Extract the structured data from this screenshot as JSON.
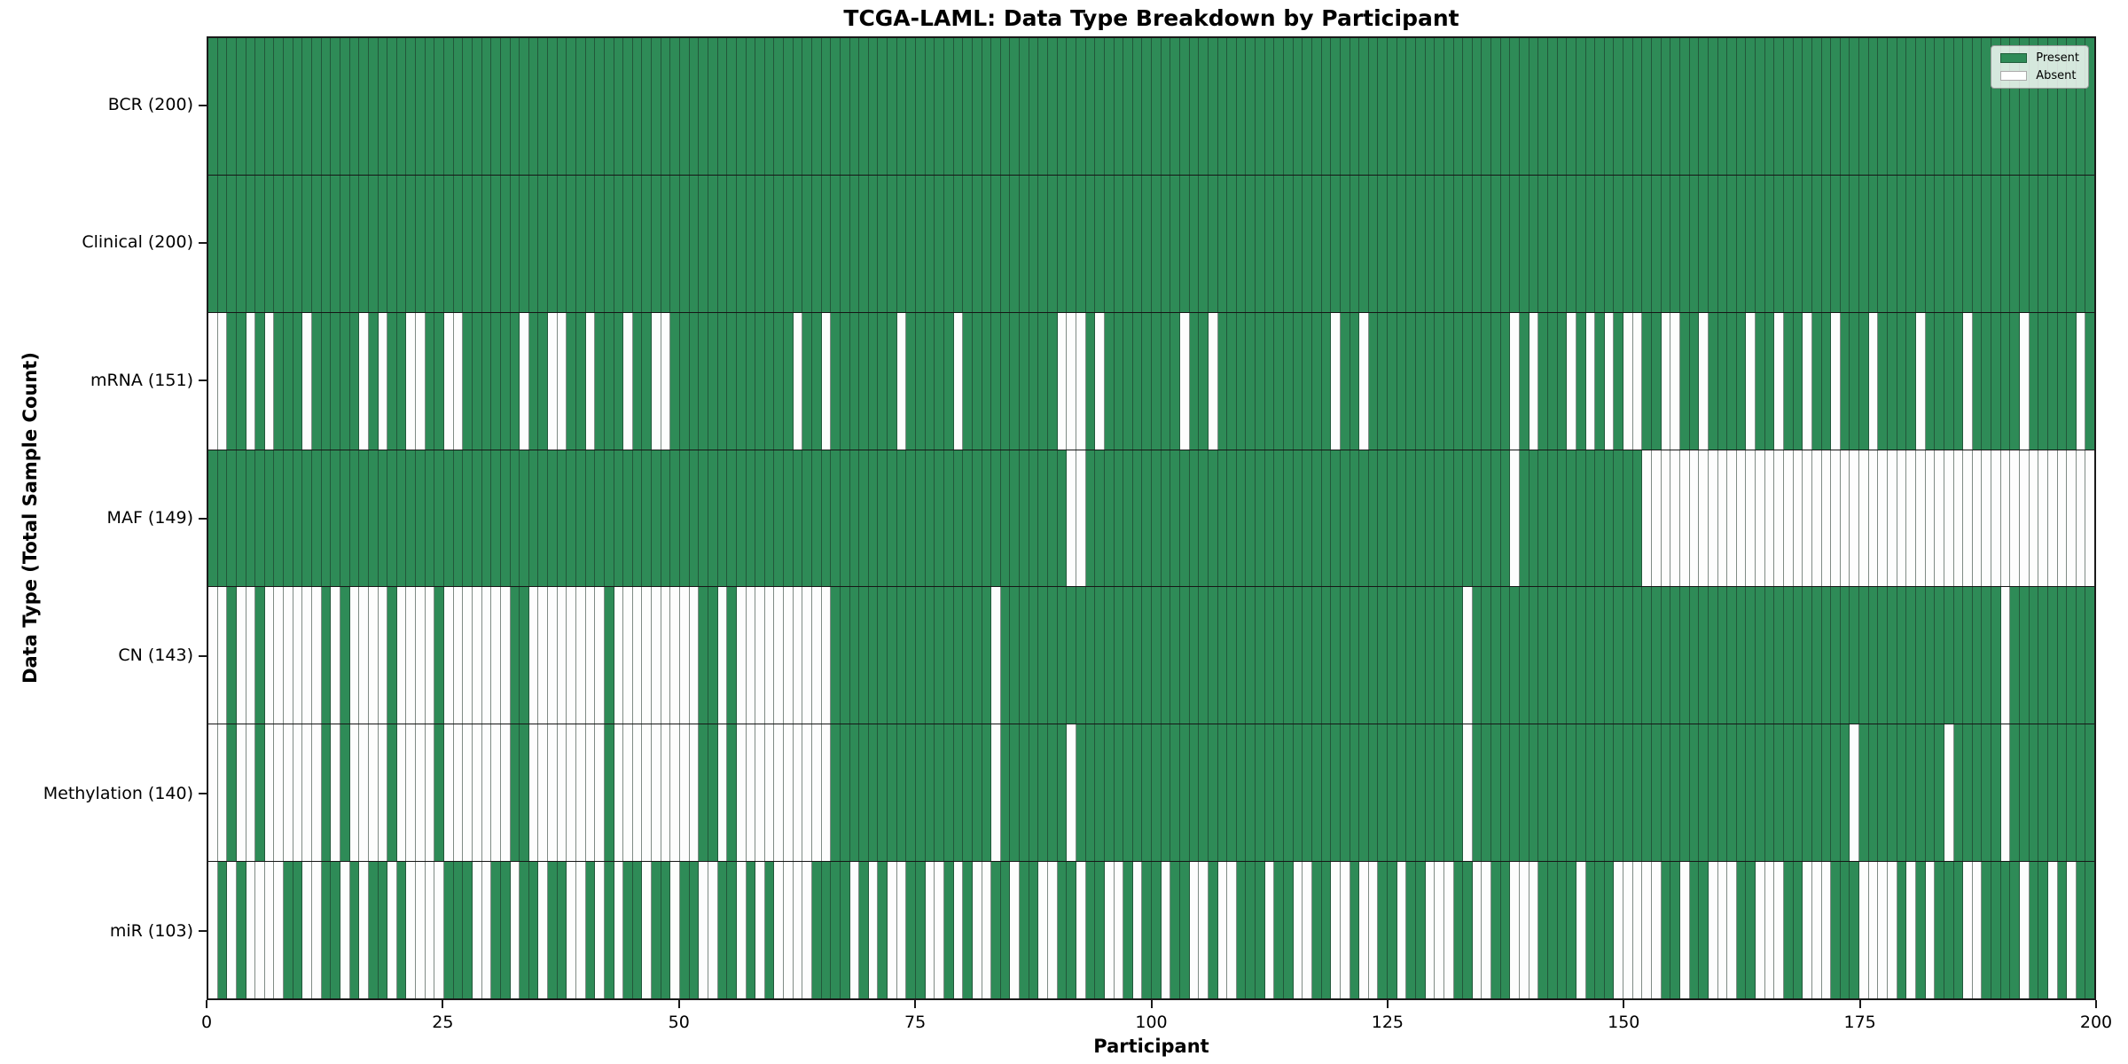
{
  "title": "TCGA-LAML: Data Type Breakdown by Participant",
  "axes": {
    "x_label": "Participant",
    "y_label": "Data Type (Total Sample Count)",
    "x_ticks": [
      0,
      25,
      50,
      75,
      100,
      125,
      150,
      175,
      200
    ],
    "x_range": [
      0,
      200
    ]
  },
  "legend": {
    "present_label": "Present",
    "absent_label": "Absent"
  },
  "colors": {
    "present": "#2e8b57",
    "absent": "#fdfdfd",
    "grid_line": "rgba(25,45,35,0.55)",
    "row_separator": "#161616"
  },
  "chart_data": {
    "type": "heatmap",
    "title": "TCGA-LAML: Data Type Breakdown by Participant",
    "xlabel": "Participant",
    "ylabel": "Data Type (Total Sample Count)",
    "x_range": [
      0,
      200
    ],
    "n_participants": 200,
    "legend_position": "upper right",
    "cell_states": [
      "Present",
      "Absent"
    ],
    "rows": [
      {
        "name": "BCR",
        "label": "BCR (200)",
        "present_count": 200,
        "absent_indices": []
      },
      {
        "name": "Clinical",
        "label": "Clinical (200)",
        "present_count": 200,
        "absent_indices": []
      },
      {
        "name": "mRNA",
        "label": "mRNA (151)",
        "present_count": 151,
        "absent_indices": [
          0,
          1,
          4,
          6,
          10,
          16,
          18,
          21,
          22,
          25,
          26,
          33,
          36,
          37,
          40,
          44,
          47,
          48,
          62,
          65,
          73,
          79,
          90,
          91,
          92,
          94,
          103,
          106,
          119,
          122,
          138,
          140,
          144,
          146,
          148,
          150,
          151,
          154,
          155,
          158,
          163,
          166,
          169,
          172,
          176,
          181,
          186,
          192,
          198
        ]
      },
      {
        "name": "MAF",
        "label": "MAF (149)",
        "present_count": 149,
        "absent_indices": [
          91,
          92,
          138,
          152,
          153,
          154,
          155,
          156,
          157,
          158,
          159,
          160,
          161,
          162,
          163,
          164,
          165,
          166,
          167,
          168,
          169,
          170,
          171,
          172,
          173,
          174,
          175,
          176,
          177,
          178,
          179,
          180,
          181,
          182,
          183,
          184,
          185,
          186,
          187,
          188,
          189,
          190,
          191,
          192,
          193,
          194,
          195,
          196,
          197,
          198,
          199
        ]
      },
      {
        "name": "CN",
        "label": "CN (143)",
        "present_count": 143,
        "absent_indices": [
          0,
          1,
          3,
          4,
          6,
          7,
          8,
          9,
          10,
          11,
          13,
          15,
          16,
          17,
          18,
          20,
          21,
          22,
          23,
          25,
          26,
          27,
          28,
          29,
          30,
          31,
          34,
          35,
          36,
          37,
          38,
          39,
          40,
          41,
          43,
          44,
          45,
          46,
          47,
          48,
          49,
          50,
          51,
          54,
          56,
          57,
          58,
          59,
          60,
          61,
          62,
          63,
          64,
          65,
          83,
          133,
          190
        ]
      },
      {
        "name": "Methylation",
        "label": "Methylation (140)",
        "present_count": 140,
        "absent_indices": [
          0,
          1,
          3,
          4,
          6,
          7,
          8,
          9,
          10,
          11,
          13,
          15,
          16,
          17,
          18,
          20,
          21,
          22,
          23,
          25,
          26,
          27,
          28,
          29,
          30,
          31,
          34,
          35,
          36,
          37,
          38,
          39,
          40,
          41,
          43,
          44,
          45,
          46,
          47,
          48,
          49,
          50,
          51,
          54,
          56,
          57,
          58,
          59,
          60,
          61,
          62,
          63,
          64,
          65,
          83,
          91,
          133,
          174,
          184,
          190
        ]
      },
      {
        "name": "miR",
        "label": "miR (103)",
        "present_count": 103,
        "absent_indices": [
          0,
          2,
          4,
          5,
          6,
          7,
          10,
          11,
          14,
          16,
          19,
          21,
          22,
          23,
          24,
          28,
          29,
          32,
          35,
          38,
          39,
          41,
          43,
          46,
          49,
          52,
          53,
          56,
          58,
          60,
          61,
          62,
          63,
          68,
          70,
          72,
          73,
          76,
          77,
          79,
          81,
          82,
          85,
          88,
          89,
          92,
          95,
          96,
          98,
          101,
          104,
          105,
          107,
          108,
          112,
          115,
          116,
          119,
          120,
          122,
          123,
          126,
          129,
          130,
          131,
          134,
          135,
          138,
          139,
          140,
          145,
          149,
          150,
          151,
          152,
          153,
          156,
          159,
          160,
          161,
          164,
          165,
          166,
          169,
          170,
          171,
          175,
          176,
          177,
          178,
          180,
          182,
          186,
          187,
          192,
          195,
          197
        ]
      }
    ]
  }
}
